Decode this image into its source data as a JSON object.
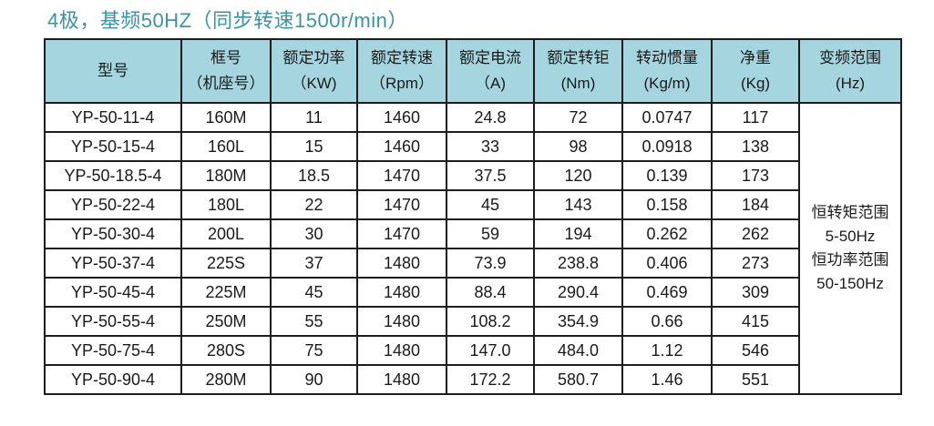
{
  "title": {
    "text": "4极，基频50HZ（同步转速1500r/min）",
    "color": "#3994a7"
  },
  "table": {
    "header_bg": "#a5d6df",
    "border_color": "#1c1c1c",
    "columns": [
      {
        "line1": "型号",
        "line2": ""
      },
      {
        "line1": "框号",
        "line2": "（机座号）"
      },
      {
        "line1": "额定功率",
        "line2": "（KW)"
      },
      {
        "line1": "额定转速",
        "line2": "（Rpm）"
      },
      {
        "line1": "额定电流",
        "line2": "（A)"
      },
      {
        "line1": "额定转钜",
        "line2": "(Nm)"
      },
      {
        "line1": "转动惯量",
        "line2": "(Kg/m)"
      },
      {
        "line1": "净重",
        "line2": "(Kg)"
      },
      {
        "line1": "变频范围",
        "line2": "(Hz)"
      }
    ],
    "rows": [
      [
        "YP-50-11-4",
        "160M",
        "11",
        "1460",
        "24.8",
        "72",
        "0.0747",
        "117"
      ],
      [
        "YP-50-15-4",
        "160L",
        "15",
        "1460",
        "33",
        "98",
        "0.0918",
        "138"
      ],
      [
        "YP-50-18.5-4",
        "180M",
        "18.5",
        "1470",
        "37.5",
        "120",
        "0.139",
        "173"
      ],
      [
        "YP-50-22-4",
        "180L",
        "22",
        "1470",
        "45",
        "143",
        "0.158",
        "184"
      ],
      [
        "YP-50-30-4",
        "200L",
        "30",
        "1470",
        "59",
        "194",
        "0.262",
        "262"
      ],
      [
        "YP-50-37-4",
        "225S",
        "37",
        "1480",
        "73.9",
        "238.8",
        "0.406",
        "273"
      ],
      [
        "YP-50-45-4",
        "225M",
        "45",
        "1480",
        "88.4",
        "290.4",
        "0.469",
        "309"
      ],
      [
        "YP-50-55-4",
        "250M",
        "55",
        "1480",
        "108.2",
        "354.9",
        "0.66",
        "415"
      ],
      [
        "YP-50-75-4",
        "280S",
        "75",
        "1480",
        "147.0",
        "484.0",
        "1.12",
        "546"
      ],
      [
        "YP-50-90-4",
        "280M",
        "90",
        "1480",
        "172.2",
        "580.7",
        "1.46",
        "551"
      ]
    ],
    "freq_range_cell": {
      "lines": [
        "恒转矩范围",
        "5-50Hz",
        "恒功率范围",
        "50-150Hz"
      ]
    }
  }
}
